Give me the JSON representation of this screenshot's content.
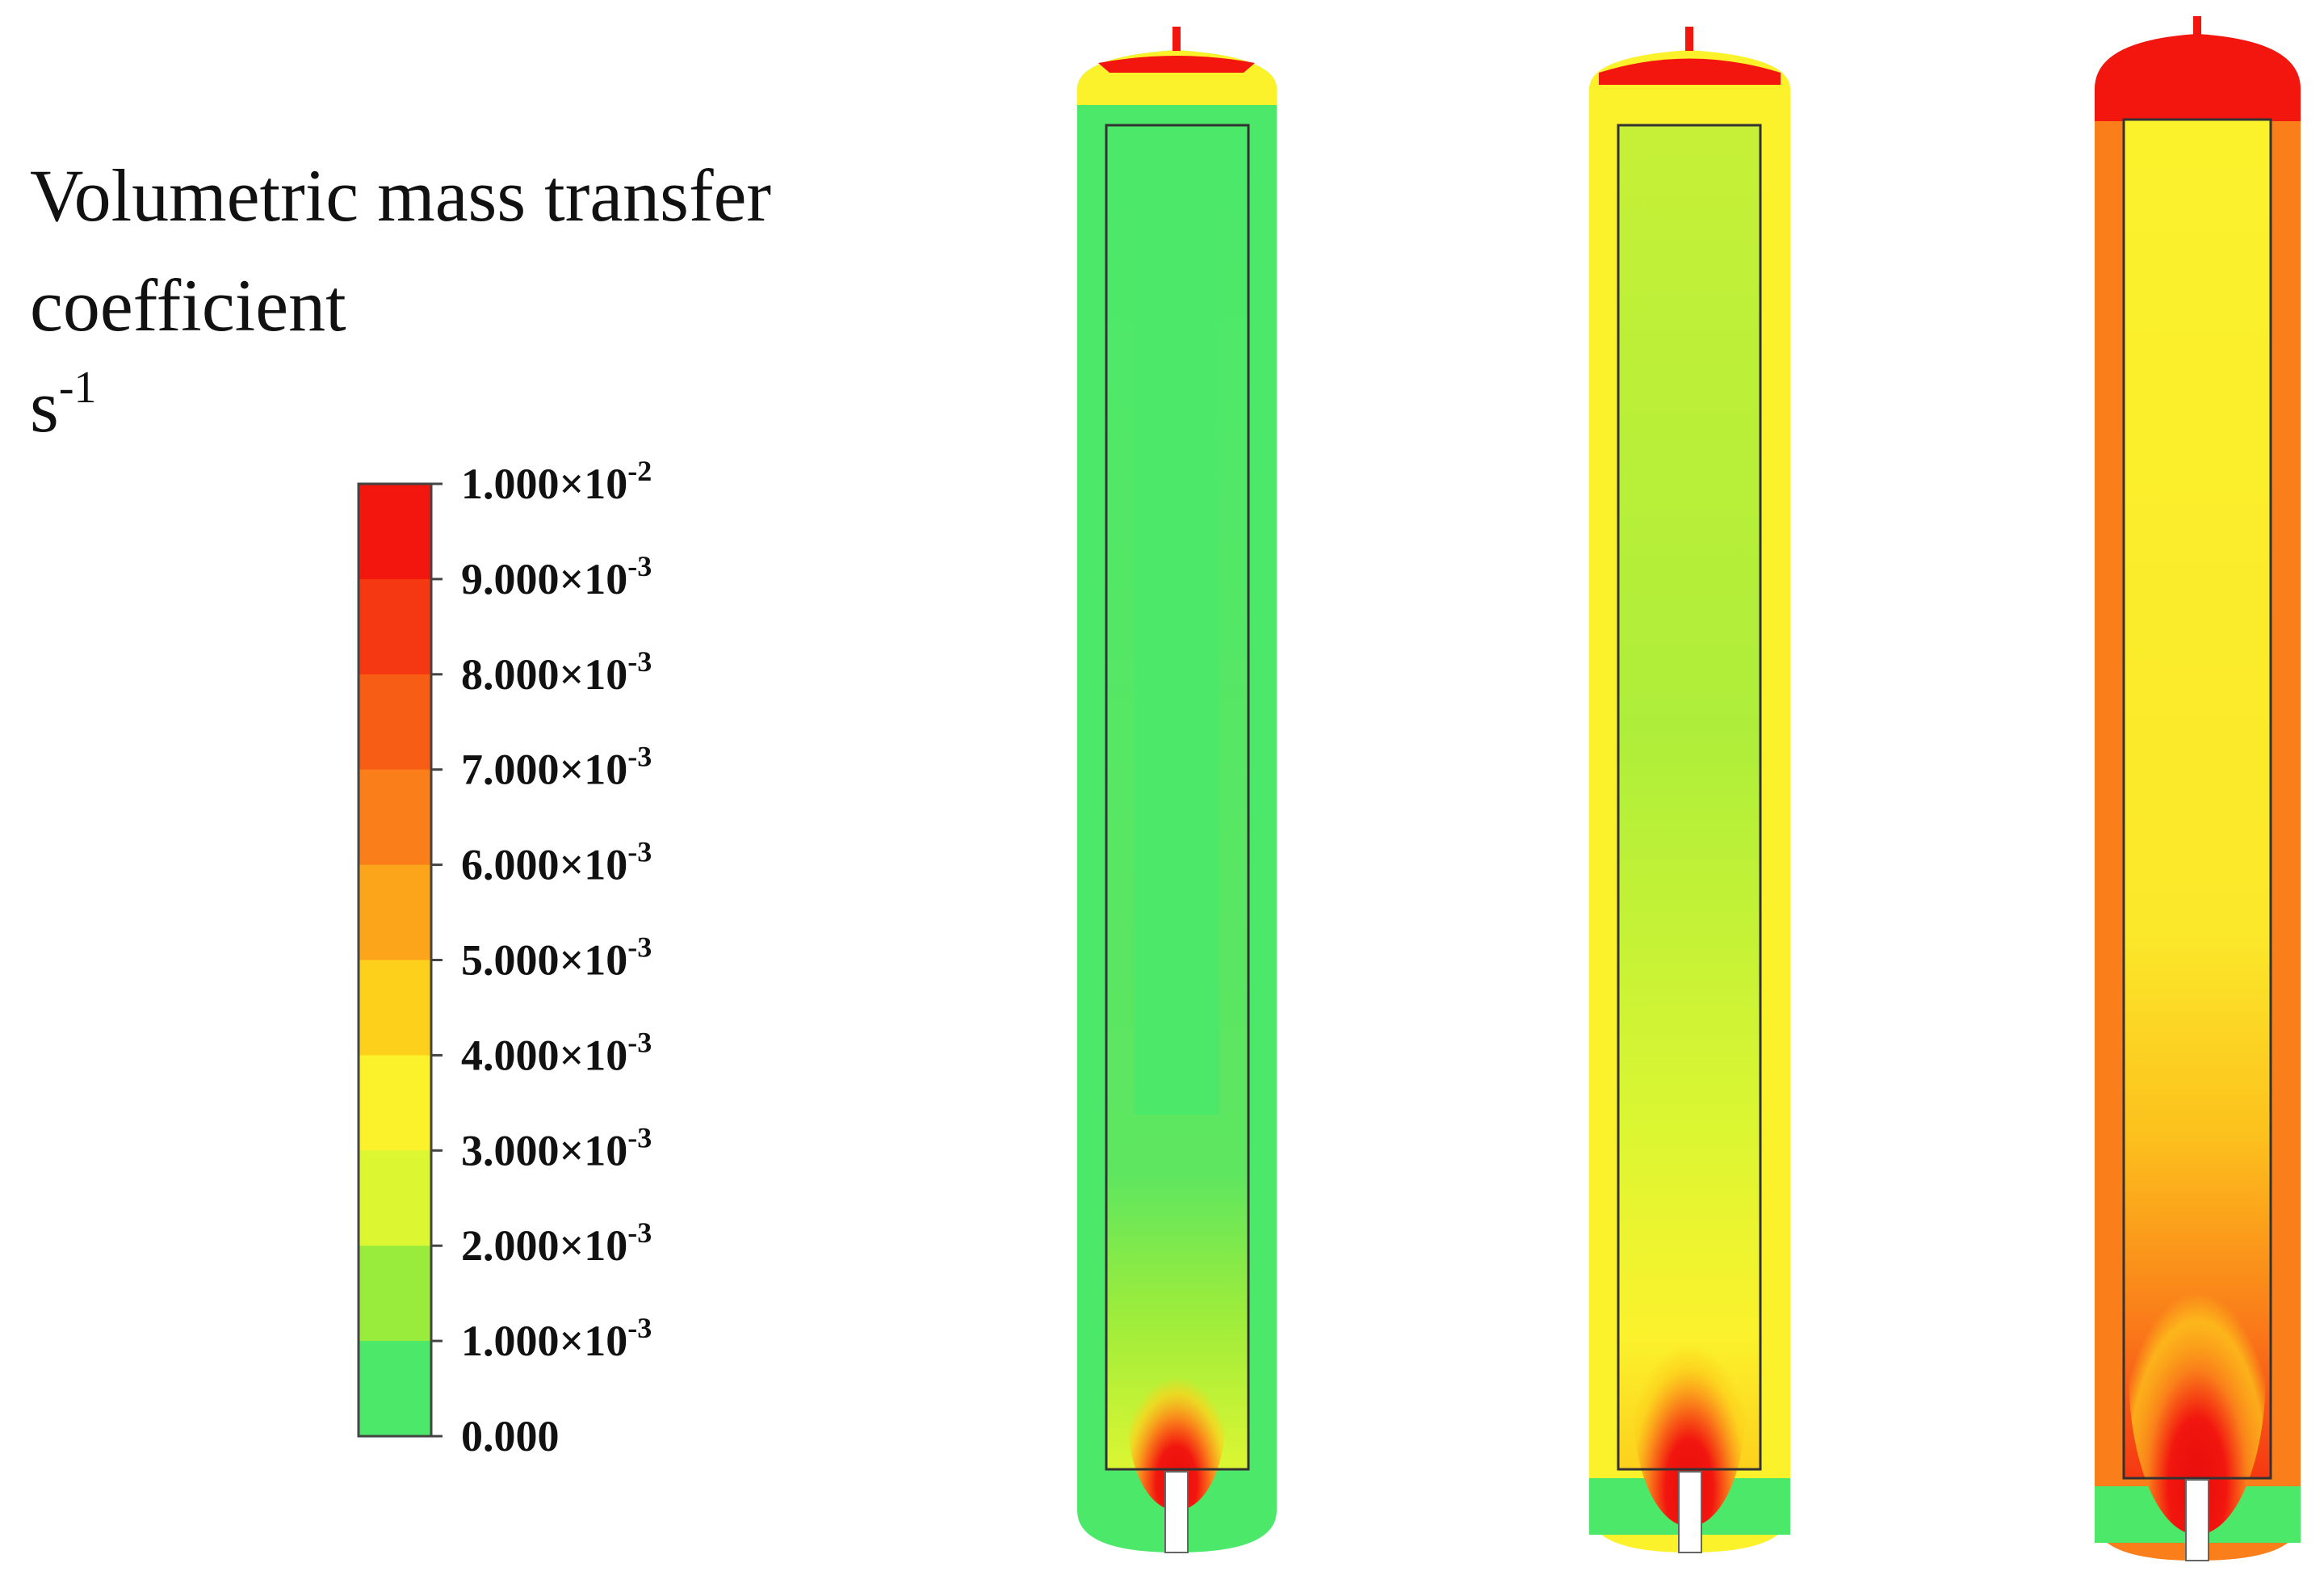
{
  "title": {
    "line1": "Volumetric mass transfer",
    "line2": "coefficient",
    "unit_base": "s",
    "unit_exponent": "-1"
  },
  "legend": {
    "colors": [
      "#f2160f",
      "#f53812",
      "#f85d16",
      "#fa7f1a",
      "#fca51a",
      "#fdd01c",
      "#fbf22c",
      "#dcf632",
      "#9aec3c",
      "#4be86a"
    ],
    "ticks": [
      {
        "base": "1.000×10",
        "exponent": "-2"
      },
      {
        "base": "9.000×10",
        "exponent": "-3"
      },
      {
        "base": "8.000×10",
        "exponent": "-3"
      },
      {
        "base": "7.000×10",
        "exponent": "-3"
      },
      {
        "base": "6.000×10",
        "exponent": "-3"
      },
      {
        "base": "5.000×10",
        "exponent": "-3"
      },
      {
        "base": "4.000×10",
        "exponent": "-3"
      },
      {
        "base": "3.000×10",
        "exponent": "-3"
      },
      {
        "base": "2.000×10",
        "exponent": "-3"
      },
      {
        "base": "1.000×10",
        "exponent": "-3"
      },
      {
        "base": "0.000"
      }
    ]
  }
}
